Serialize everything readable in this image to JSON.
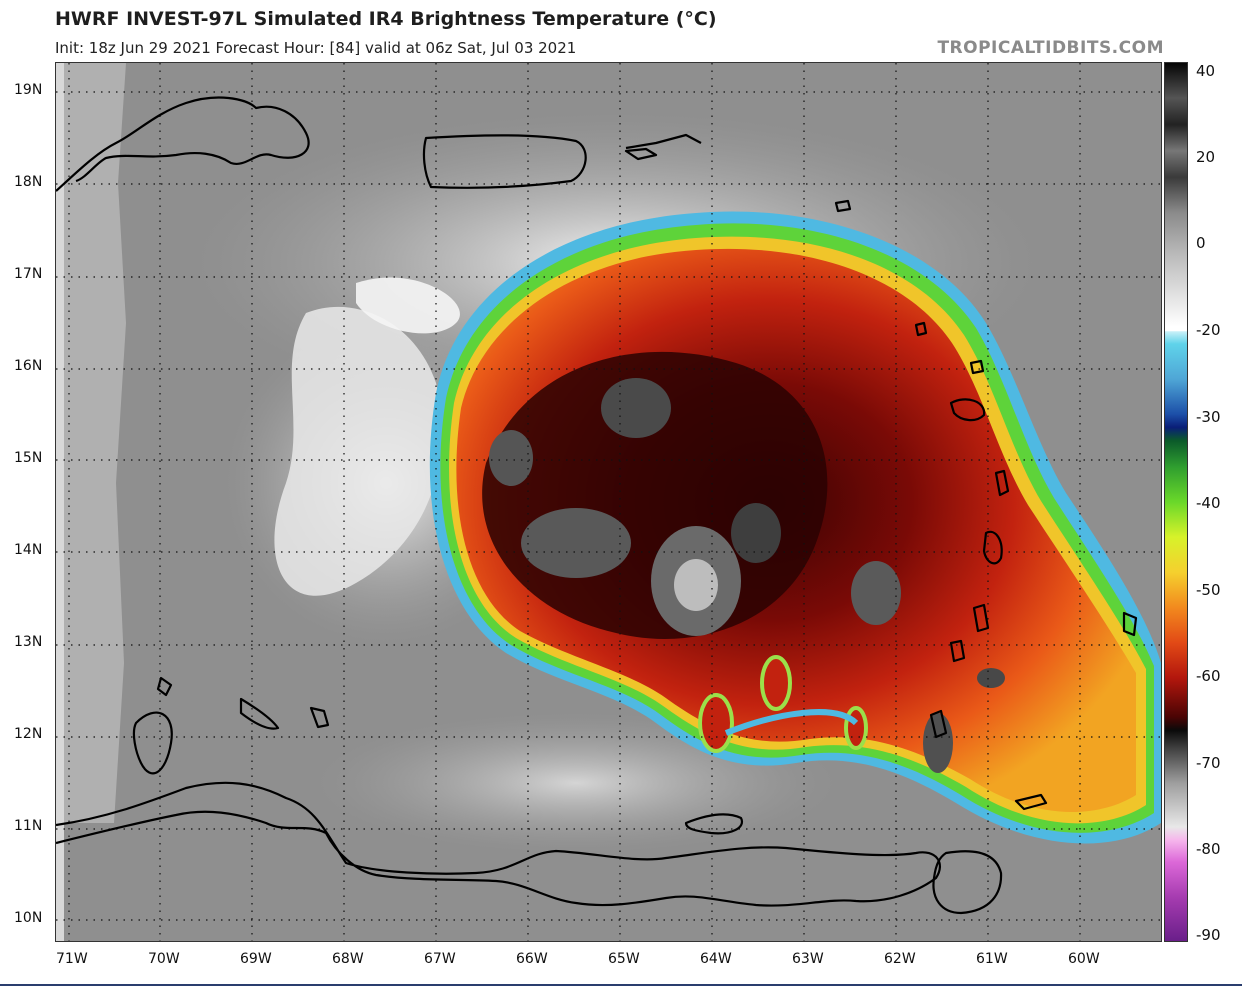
{
  "header": {
    "title": "HWRF INVEST-97L Simulated IR4 Brightness Temperature (°C)",
    "subtitle": "Init: 18z Jun 29 2021   Forecast Hour: [84]   valid at 06z Sat, Jul 03 2021",
    "watermark": "TROPICALTIDBITS.COM"
  },
  "map": {
    "lat_labels": [
      "19N",
      "18N",
      "17N",
      "16N",
      "15N",
      "14N",
      "13N",
      "12N",
      "11N",
      "10N"
    ],
    "lon_labels": [
      "71W",
      "70W",
      "69W",
      "68W",
      "67W",
      "66W",
      "65W",
      "64W",
      "63W",
      "62W",
      "61W",
      "60W"
    ],
    "colors": {
      "ocean_gray": "#8f8f8f",
      "land_gray": "#b5b5b5",
      "coast": "#000000",
      "grid": "#111111"
    }
  },
  "colorbar": {
    "labels": [
      "40",
      "20",
      "0",
      "-20",
      "-30",
      "-40",
      "-50",
      "-60",
      "-70",
      "-80",
      "-90"
    ],
    "units": "°C"
  }
}
